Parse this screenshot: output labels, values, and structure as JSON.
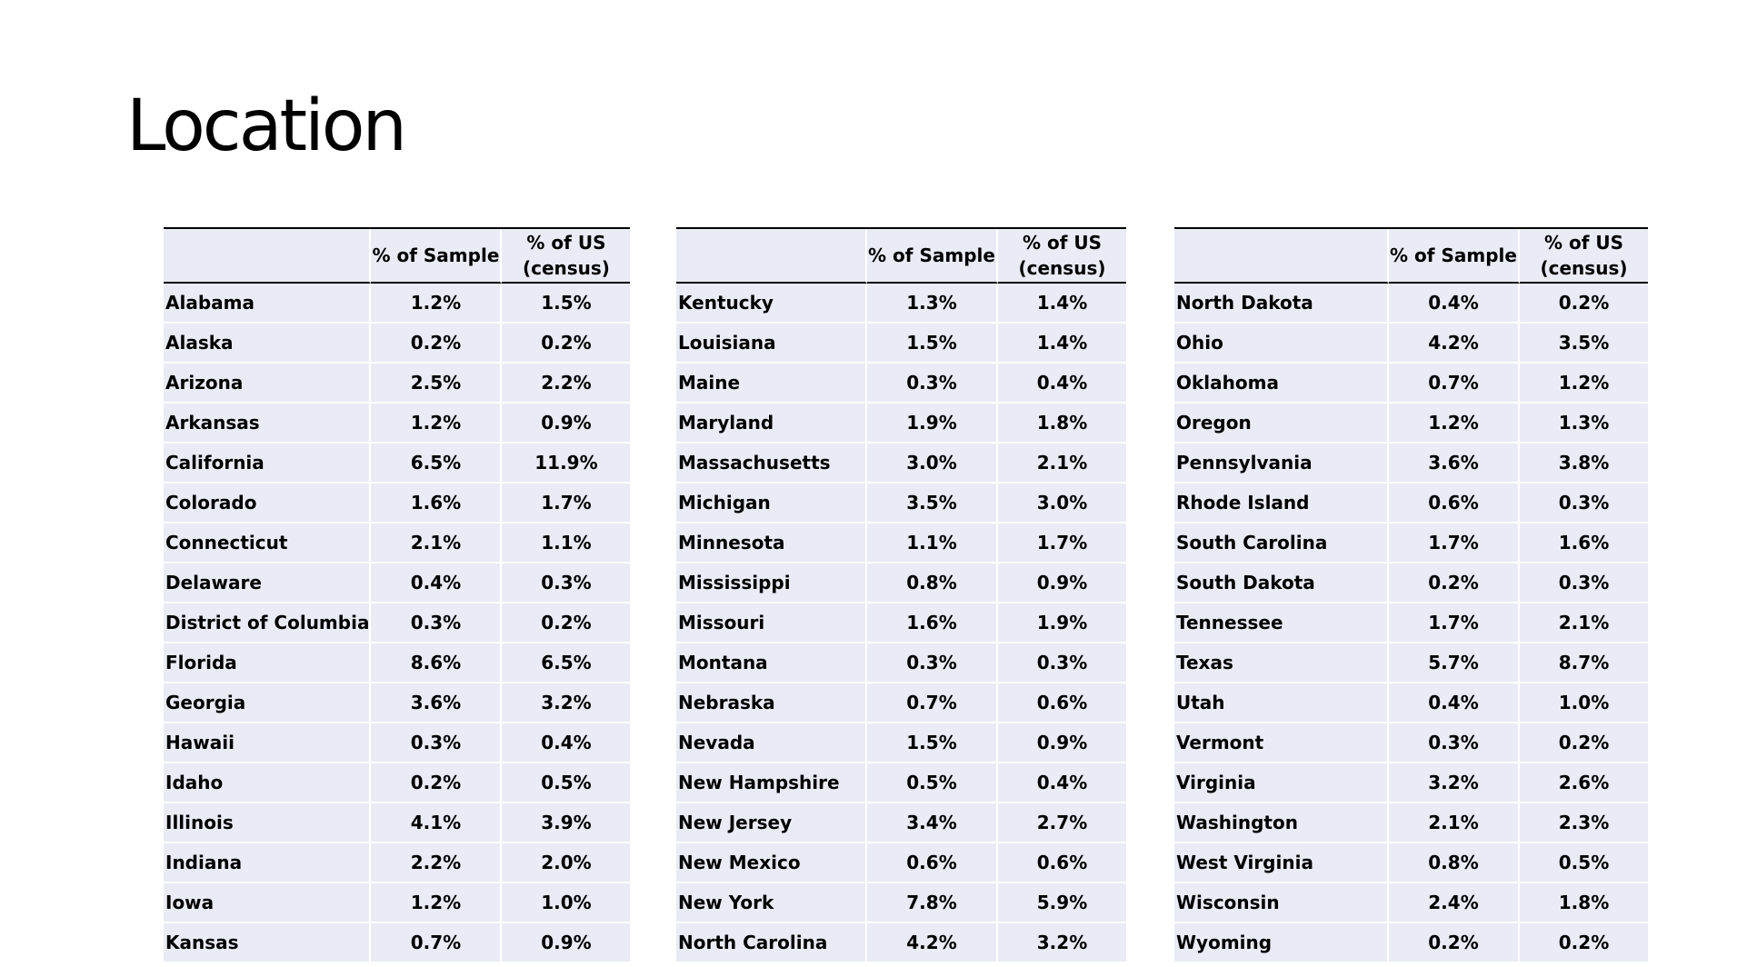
{
  "slide": {
    "title": "Location"
  },
  "columns": {
    "sample": "% of Sample",
    "us_line1": "% of US",
    "us_line2": "(census)"
  },
  "tables": [
    {
      "rows": [
        {
          "state": "Alabama",
          "sample": "1.2%",
          "us": "1.5%"
        },
        {
          "state": "Alaska",
          "sample": "0.2%",
          "us": "0.2%"
        },
        {
          "state": "Arizona",
          "sample": "2.5%",
          "us": "2.2%"
        },
        {
          "state": "Arkansas",
          "sample": "1.2%",
          "us": "0.9%"
        },
        {
          "state": "California",
          "sample": "6.5%",
          "us": "11.9%"
        },
        {
          "state": "Colorado",
          "sample": "1.6%",
          "us": "1.7%"
        },
        {
          "state": "Connecticut",
          "sample": "2.1%",
          "us": "1.1%"
        },
        {
          "state": "Delaware",
          "sample": "0.4%",
          "us": "0.3%"
        },
        {
          "state": "District of Columbia",
          "sample": "0.3%",
          "us": "0.2%"
        },
        {
          "state": "Florida",
          "sample": "8.6%",
          "us": "6.5%"
        },
        {
          "state": "Georgia",
          "sample": "3.6%",
          "us": "3.2%"
        },
        {
          "state": "Hawaii",
          "sample": "0.3%",
          "us": "0.4%"
        },
        {
          "state": "Idaho",
          "sample": "0.2%",
          "us": "0.5%"
        },
        {
          "state": "Illinois",
          "sample": "4.1%",
          "us": "3.9%"
        },
        {
          "state": "Indiana",
          "sample": "2.2%",
          "us": "2.0%"
        },
        {
          "state": "Iowa",
          "sample": "1.2%",
          "us": "1.0%"
        },
        {
          "state": "Kansas",
          "sample": "0.7%",
          "us": "0.9%"
        }
      ]
    },
    {
      "rows": [
        {
          "state": "Kentucky",
          "sample": "1.3%",
          "us": "1.4%"
        },
        {
          "state": "Louisiana",
          "sample": "1.5%",
          "us": "1.4%"
        },
        {
          "state": "Maine",
          "sample": "0.3%",
          "us": "0.4%"
        },
        {
          "state": "Maryland",
          "sample": "1.9%",
          "us": "1.8%"
        },
        {
          "state": "Massachusetts",
          "sample": "3.0%",
          "us": "2.1%"
        },
        {
          "state": "Michigan",
          "sample": "3.5%",
          "us": "3.0%"
        },
        {
          "state": "Minnesota",
          "sample": "1.1%",
          "us": "1.7%"
        },
        {
          "state": "Mississippi",
          "sample": "0.8%",
          "us": "0.9%"
        },
        {
          "state": "Missouri",
          "sample": "1.6%",
          "us": "1.9%"
        },
        {
          "state": "Montana",
          "sample": "0.3%",
          "us": "0.3%"
        },
        {
          "state": "Nebraska",
          "sample": "0.7%",
          "us": "0.6%"
        },
        {
          "state": "Nevada",
          "sample": "1.5%",
          "us": "0.9%"
        },
        {
          "state": "New Hampshire",
          "sample": "0.5%",
          "us": "0.4%"
        },
        {
          "state": "New Jersey",
          "sample": "3.4%",
          "us": "2.7%"
        },
        {
          "state": "New Mexico",
          "sample": "0.6%",
          "us": "0.6%"
        },
        {
          "state": "New York",
          "sample": "7.8%",
          "us": "5.9%"
        },
        {
          "state": "North Carolina",
          "sample": "4.2%",
          "us": "3.2%"
        }
      ]
    },
    {
      "rows": [
        {
          "state": "North Dakota",
          "sample": "0.4%",
          "us": "0.2%"
        },
        {
          "state": "Ohio",
          "sample": "4.2%",
          "us": "3.5%"
        },
        {
          "state": "Oklahoma",
          "sample": "0.7%",
          "us": "1.2%"
        },
        {
          "state": "Oregon",
          "sample": "1.2%",
          "us": "1.3%"
        },
        {
          "state": "Pennsylvania",
          "sample": "3.6%",
          "us": "3.8%"
        },
        {
          "state": "Rhode Island",
          "sample": "0.6%",
          "us": "0.3%"
        },
        {
          "state": "South Carolina",
          "sample": "1.7%",
          "us": "1.6%"
        },
        {
          "state": "South Dakota",
          "sample": "0.2%",
          "us": "0.3%"
        },
        {
          "state": "Tennessee",
          "sample": "1.7%",
          "us": "2.1%"
        },
        {
          "state": "Texas",
          "sample": "5.7%",
          "us": "8.7%"
        },
        {
          "state": "Utah",
          "sample": "0.4%",
          "us": "1.0%"
        },
        {
          "state": "Vermont",
          "sample": "0.3%",
          "us": "0.2%"
        },
        {
          "state": "Virginia",
          "sample": "3.2%",
          "us": "2.6%"
        },
        {
          "state": "Washington",
          "sample": "2.1%",
          "us": "2.3%"
        },
        {
          "state": "West Virginia",
          "sample": "0.8%",
          "us": "0.5%"
        },
        {
          "state": "Wisconsin",
          "sample": "2.4%",
          "us": "1.8%"
        },
        {
          "state": "Wyoming",
          "sample": "0.2%",
          "us": "0.2%"
        }
      ]
    }
  ]
}
